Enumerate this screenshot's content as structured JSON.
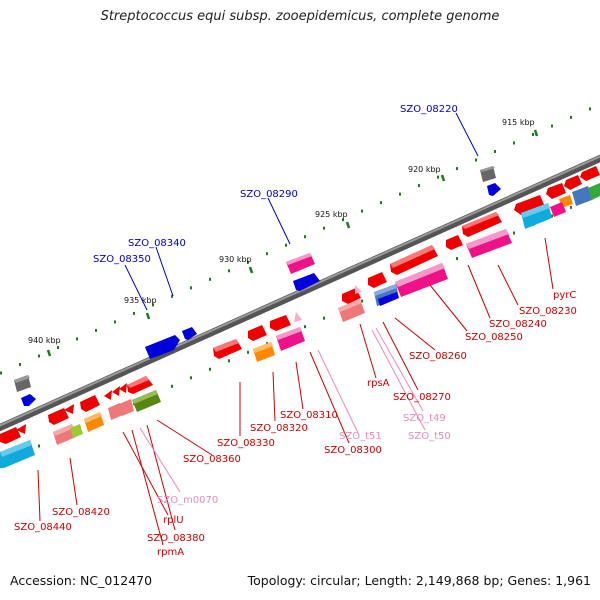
{
  "title": "Streptococcus equi subsp. zooepidemicus, complete genome",
  "footer": {
    "accession": "Accession: NC_012470",
    "topology": "Topology: circular; Length: 2,149,868 bp; Genes: 1,961"
  },
  "scale": {
    "ticks": [
      "915 kbp",
      "920 kbp",
      "925 kbp",
      "930 kbp",
      "935 kbp",
      "940 kbp"
    ]
  },
  "colors": {
    "backbone": "#777777",
    "tick": "#1f7a1f",
    "label_forward": "#0000cc",
    "label_reverse": "#cc0000",
    "label_rna": "#ee88bb",
    "gene_red": "#ee0000",
    "gene_pink": "#ee1188",
    "gene_blue": "#0000dd",
    "gene_grey": "#666666",
    "gene_cyan": "#11aadd",
    "gene_orange": "#ff8800",
    "gene_olive": "#558811",
    "gene_lightred": "#ee7777"
  },
  "genes_forward": [
    "SZO_08220",
    "SZO_08290",
    "SZO_08340",
    "SZO_08350"
  ],
  "genes_reverse": [
    "SZO_08230",
    "pyrC",
    "SZO_08240",
    "SZO_08250",
    "SZO_08260",
    "SZO_08270",
    "rpsA",
    "SZO_08300",
    "SZO_08310",
    "SZO_08320",
    "SZO_08330",
    "SZO_08360",
    "SZO_08380",
    "rpmA",
    "rplU",
    "SZO_08420",
    "SZO_08440"
  ],
  "genes_rna": [
    "SZO_t49",
    "SZO_t50",
    "SZO_t51",
    "SZO_m0070"
  ]
}
